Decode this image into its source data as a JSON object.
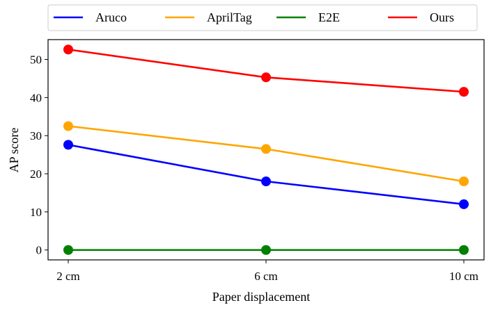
{
  "chart_data": {
    "type": "line",
    "categories": [
      "2 cm",
      "6 cm",
      "10 cm"
    ],
    "xlabel": "Paper displacement",
    "ylabel": "AP score",
    "ylim": [
      -2.6,
      55.2
    ],
    "yticks": [
      0,
      10,
      20,
      30,
      40,
      50
    ],
    "grid": false,
    "legend_position": "top",
    "series": [
      {
        "name": "Aruco",
        "color": "#0000ff",
        "values": [
          27.6,
          18.0,
          12.0
        ]
      },
      {
        "name": "AprilTag",
        "color": "#ffa500",
        "values": [
          32.5,
          26.5,
          18.0
        ]
      },
      {
        "name": "E2E",
        "color": "#008000",
        "values": [
          0.0,
          0.0,
          0.0
        ]
      },
      {
        "name": "Ours",
        "color": "#ff0000",
        "values": [
          52.6,
          45.3,
          41.5
        ]
      }
    ]
  }
}
